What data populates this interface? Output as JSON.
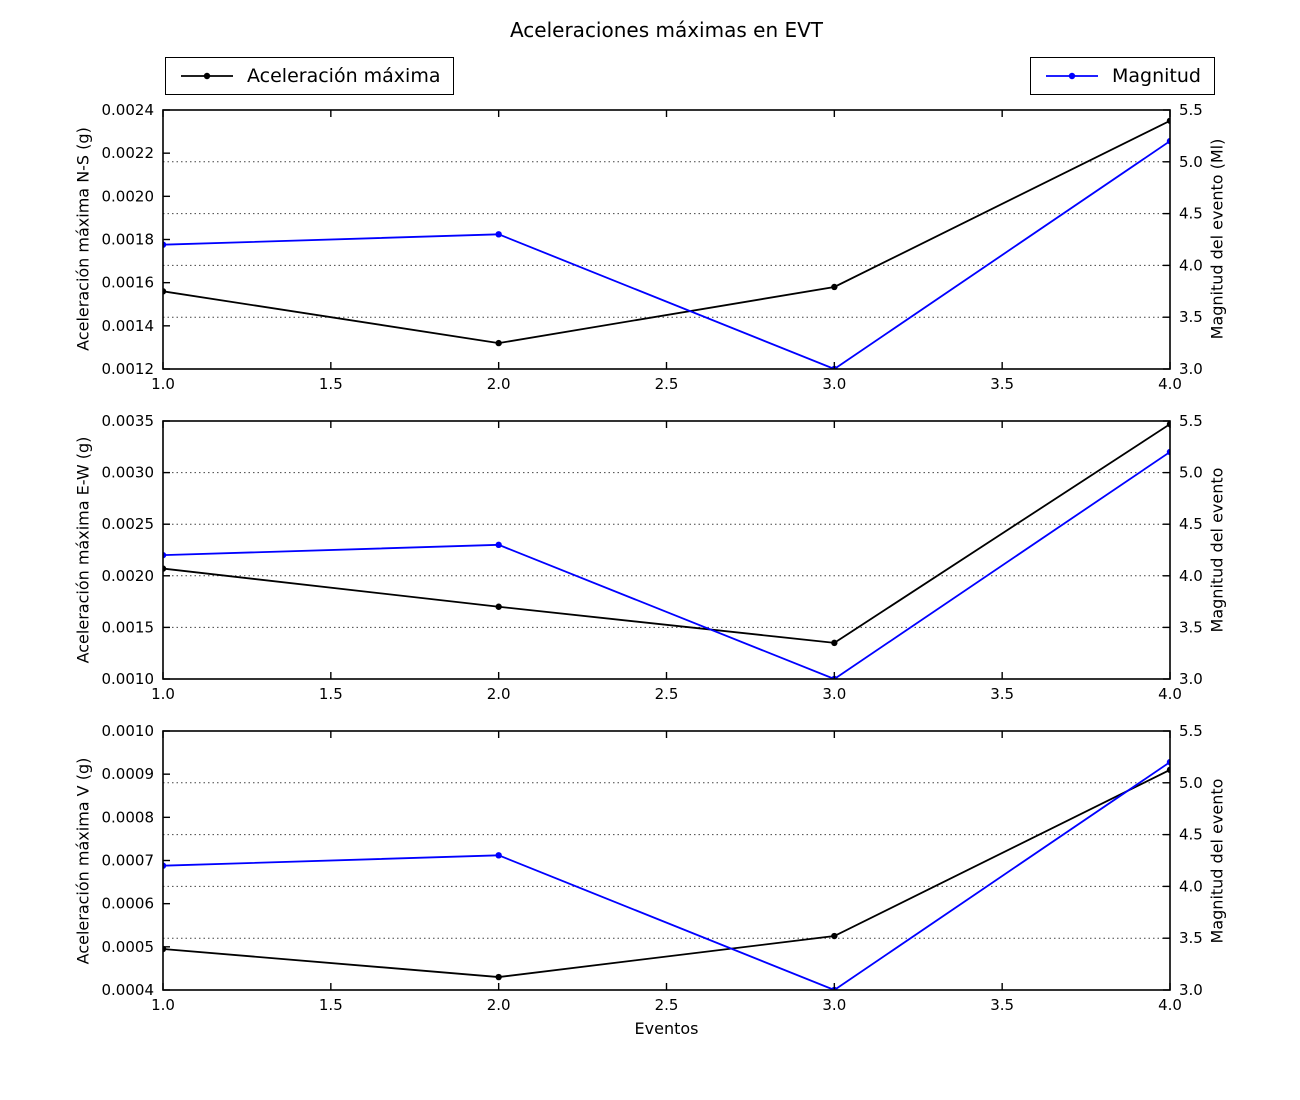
{
  "figure": {
    "background": "#ffffff"
  },
  "chart_data": {
    "type": "line",
    "title": "Aceleraciones máximas en EVT",
    "xlabel": "Eventos",
    "x": [
      1.0,
      2.0,
      3.0,
      4.0
    ],
    "xlim": [
      1.0,
      4.0
    ],
    "xticks": [
      "1.0",
      "1.5",
      "2.0",
      "2.5",
      "3.0",
      "3.5",
      "4.0"
    ],
    "grid": "horizontal dotted lines at right-axis magnitude ticks",
    "grid_at_magnitud": [
      3.5,
      4.0,
      4.5,
      5.0
    ],
    "legend": [
      {
        "label": "Aceleración máxima",
        "color": "#000000",
        "position": "upper-left",
        "marker": "dot"
      },
      {
        "label": "Magnitud",
        "color": "#0000ff",
        "position": "upper-right",
        "marker": "dot"
      }
    ],
    "series_colors": {
      "aceleracion": "#000000",
      "magnitud": "#0000ff"
    },
    "subplots": [
      {
        "ylabel_left": "Aceleración máxima N-S (g)",
        "ylabel_right": "Magnitud del evento (Ml)",
        "ylim_left": [
          0.0012,
          0.0024
        ],
        "yticks_left": [
          "0.0012",
          "0.0014",
          "0.0016",
          "0.0018",
          "0.0020",
          "0.0022",
          "0.0024"
        ],
        "ylim_right": [
          3.0,
          5.5
        ],
        "yticks_right": [
          "3.0",
          "3.5",
          "4.0",
          "4.5",
          "5.0",
          "5.5"
        ],
        "aceleracion_values": [
          0.00156,
          0.00132,
          0.00158,
          0.00235
        ],
        "magnitud_values": [
          4.2,
          4.3,
          3.0,
          5.2
        ]
      },
      {
        "ylabel_left": "Aceleración máxima E-W (g)",
        "ylabel_right": "Magnitud del evento",
        "ylim_left": [
          0.001,
          0.0035
        ],
        "yticks_left": [
          "0.0010",
          "0.0015",
          "0.0020",
          "0.0025",
          "0.0030",
          "0.0035"
        ],
        "ylim_right": [
          3.0,
          5.5
        ],
        "yticks_right": [
          "3.0",
          "3.5",
          "4.0",
          "4.5",
          "5.0",
          "5.5"
        ],
        "aceleracion_values": [
          0.00207,
          0.0017,
          0.00135,
          0.00347
        ],
        "magnitud_values": [
          4.2,
          4.3,
          3.0,
          5.2
        ]
      },
      {
        "ylabel_left": "Aceleración máxima V (g)",
        "ylabel_right": "Magnitud del evento",
        "ylim_left": [
          0.0004,
          0.001
        ],
        "yticks_left": [
          "0.0004",
          "0.0005",
          "0.0006",
          "0.0007",
          "0.0008",
          "0.0009",
          "0.0010"
        ],
        "ylim_right": [
          3.0,
          5.5
        ],
        "yticks_right": [
          "3.0",
          "3.5",
          "4.0",
          "4.5",
          "5.0",
          "5.5"
        ],
        "aceleracion_values": [
          0.000495,
          0.00043,
          0.000525,
          0.00091
        ],
        "magnitud_values": [
          4.2,
          4.3,
          3.0,
          5.2
        ]
      }
    ]
  }
}
